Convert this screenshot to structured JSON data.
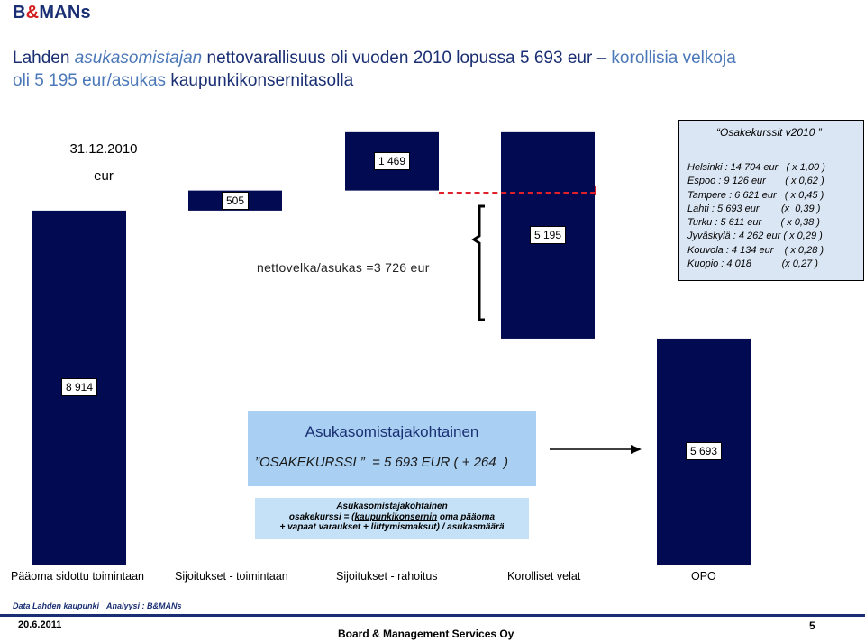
{
  "header": {
    "logo_prefix": "B",
    "logo_amp": "&",
    "logo_suffix": "MANs",
    "title_part1": "Lahden ",
    "title_part2": "asukasomistajan",
    "title_part3": " nettovarallisuus oli vuoden 2010 lopussa 5 693 eur – ",
    "title_part4": "korollisia velkoja",
    "title_line2a": "oli 5 195 eur/asukas",
    "title_line2b": " kaupunkikonsernitasolla"
  },
  "chart_data": {
    "type": "bar",
    "subtype": "waterfall",
    "date_label": "31.12.2010",
    "unit_label": "eur",
    "categories": [
      "Pääoma sidottu toimintaan",
      "Sijoitukset - toimintaan",
      "Sijoitukset - rahoitus",
      "Korolliset velat",
      "OPO"
    ],
    "values": [
      8914,
      505,
      1469,
      -5195,
      5693
    ],
    "labels": [
      "8 914",
      "505",
      "1 469",
      "5 195",
      "5 693"
    ],
    "annotation": "nettovelka/asukas =3 726 eur",
    "colors": {
      "bar": "#020a52",
      "dashed_line": "#e0202a"
    }
  },
  "info_box": {
    "title": "Osakekurssit v2010",
    "lines": [
      "Helsinki : 14 704 eur   ( x 1,00 )",
      "Espoo : 9 126 eur       ( x 0,62 )",
      "Tampere : 6 621 eur   ( x 0,45 )",
      "Lahti : 5 693 eur        (x  0,39 )",
      "Turku : 5 611 eur       ( x 0,38 )",
      "Jyväskylä : 4 262 eur ( x 0,29 )",
      "Kouvola : 4 134 eur    ( x 0,28 )",
      "Kuopio : 4 018           (x 0,27 )"
    ]
  },
  "highlight_box": {
    "line1": "Asukasomistajakohtainen",
    "line2": "OSAKEKURSSI ”  = 5 693 EUR ( + 264  )"
  },
  "formula_box": {
    "line1": "Asukasomistajakohtainen",
    "line2_pre": "osakekurssi = (",
    "line2_u": "kaupunkikonsernin",
    "line2_post": " oma pääoma",
    "line3": "+ vapaat varaukset + liittymismaksut) / asukasmäärä"
  },
  "footer": {
    "source": "Data Lahden kaupunki",
    "analysis": "Analyysi : B&MANs",
    "date": "20.6.2011",
    "company": "Board & Management Services Oy",
    "page": "5"
  }
}
